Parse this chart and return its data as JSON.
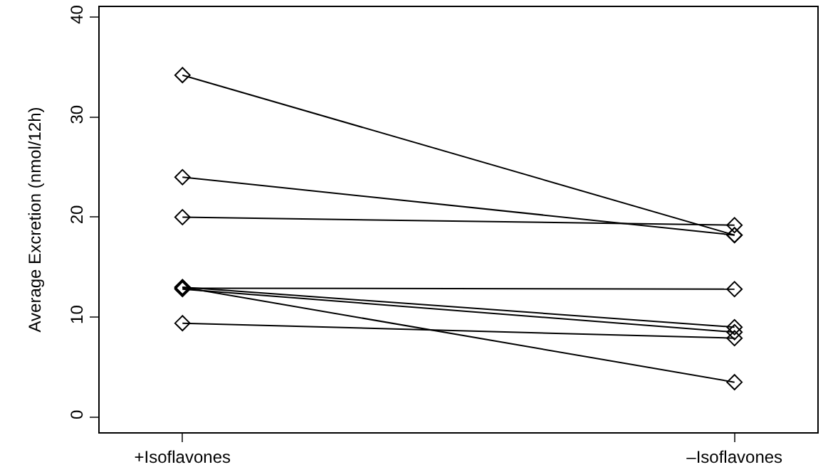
{
  "chart_data": {
    "type": "line",
    "ylabel": "Average Excretion (nmol/12h)",
    "categories": [
      "+Isoflavones",
      "–Isoflavones"
    ],
    "ylim": [
      -1.5,
      41
    ],
    "yticks": [
      0,
      10,
      20,
      30,
      40
    ],
    "marker": "diamond",
    "line_style": "solid",
    "series": [
      {
        "color": "#000000",
        "values": [
          34.2,
          18.2
        ]
      },
      {
        "color": "#000000",
        "values": [
          24.0,
          18.2
        ]
      },
      {
        "color": "#000000",
        "values": [
          20.0,
          19.2
        ]
      },
      {
        "color": "#000000",
        "values": [
          12.9,
          12.8
        ]
      },
      {
        "color": "#000000",
        "values": [
          13.0,
          9.0
        ]
      },
      {
        "color": "#000000",
        "values": [
          12.8,
          8.5
        ]
      },
      {
        "color": "#000000",
        "values": [
          13.0,
          3.5
        ]
      },
      {
        "color": "#000000",
        "values": [
          9.4,
          7.9
        ]
      }
    ]
  }
}
